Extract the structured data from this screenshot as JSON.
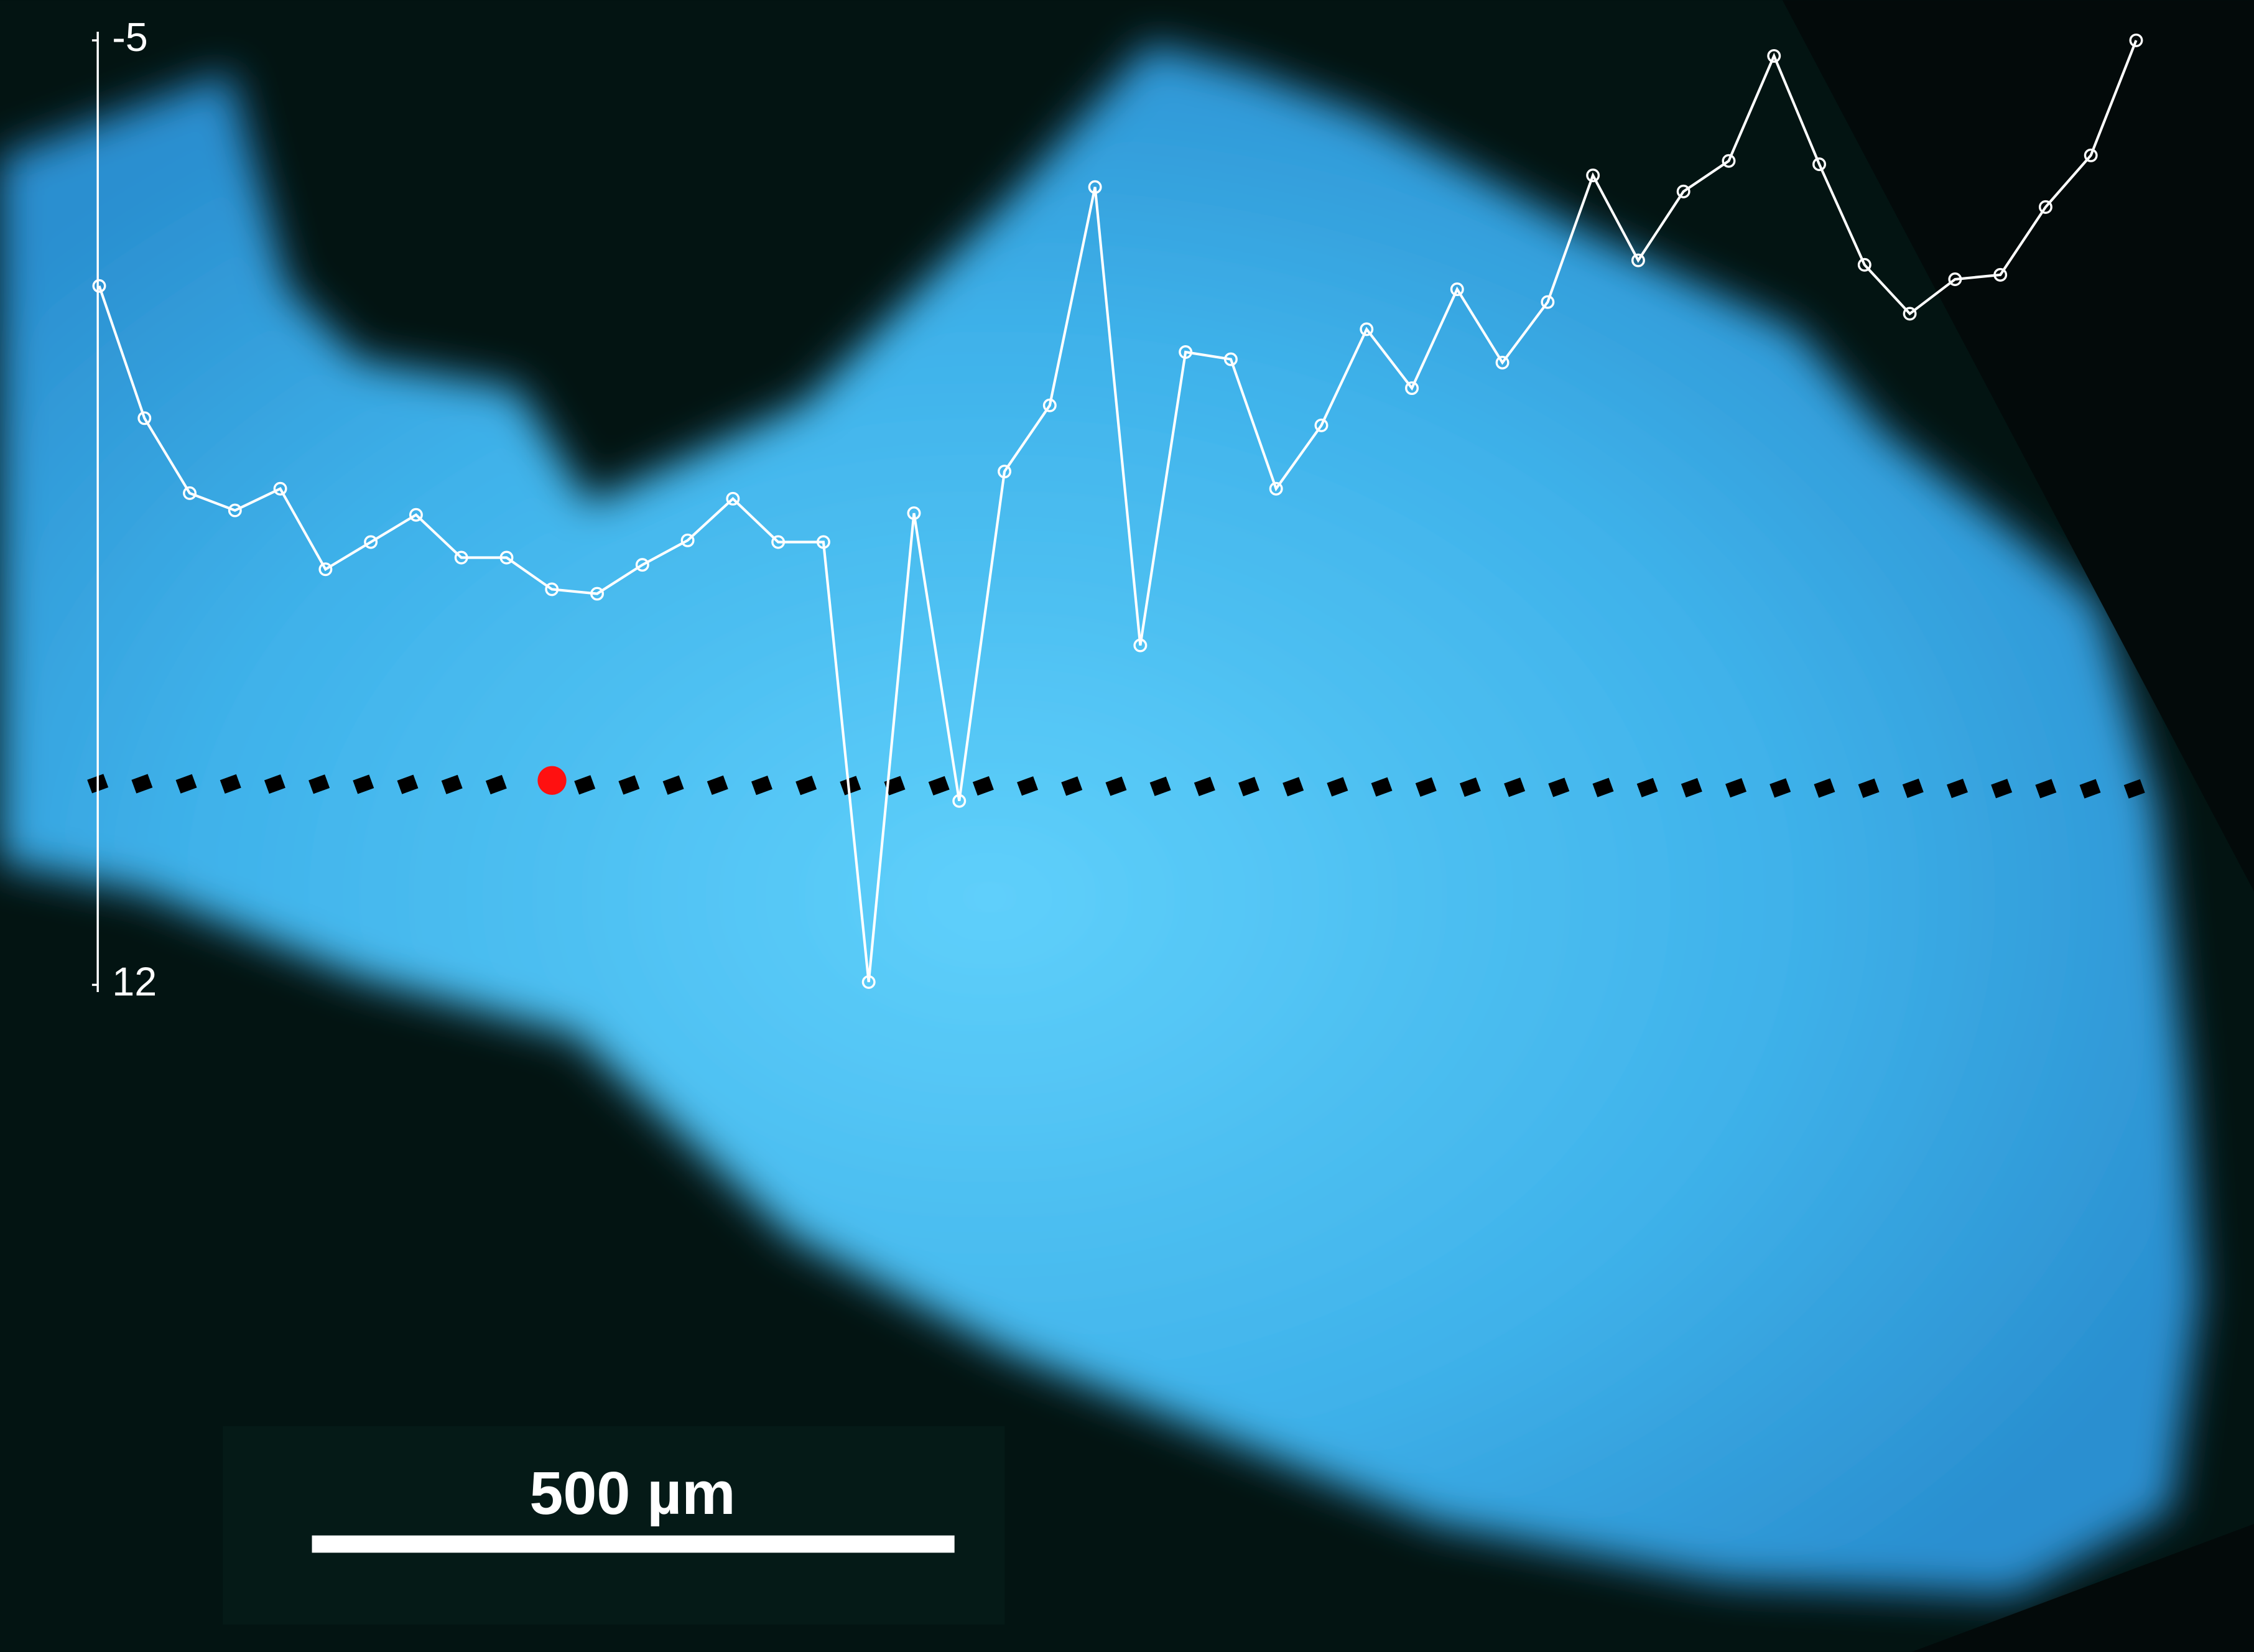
{
  "chart_data": {
    "type": "line",
    "ylim": [
      -5,
      12
    ],
    "y_inverted": true,
    "yticks": [
      -5,
      12
    ],
    "color": "#ffffff",
    "values": [
      -0.58,
      1.8,
      3.15,
      3.46,
      3.07,
      4.52,
      4.03,
      3.54,
      4.31,
      4.31,
      4.88,
      4.96,
      4.44,
      4.0,
      3.25,
      4.03,
      4.03,
      11.95,
      3.51,
      8.69,
      2.76,
      1.57,
      -2.36,
      5.89,
      0.61,
      0.74,
      3.07,
      1.93,
      0.2,
      1.26,
      -0.52,
      0.8,
      -0.29,
      -2.57,
      -1.04,
      -2.28,
      -2.83,
      -4.72,
      -2.77,
      -0.96,
      -0.08,
      -0.7,
      -0.78,
      -2.0,
      -2.93,
      -5.0
    ]
  },
  "scale_bar": {
    "label": "500 µm"
  }
}
